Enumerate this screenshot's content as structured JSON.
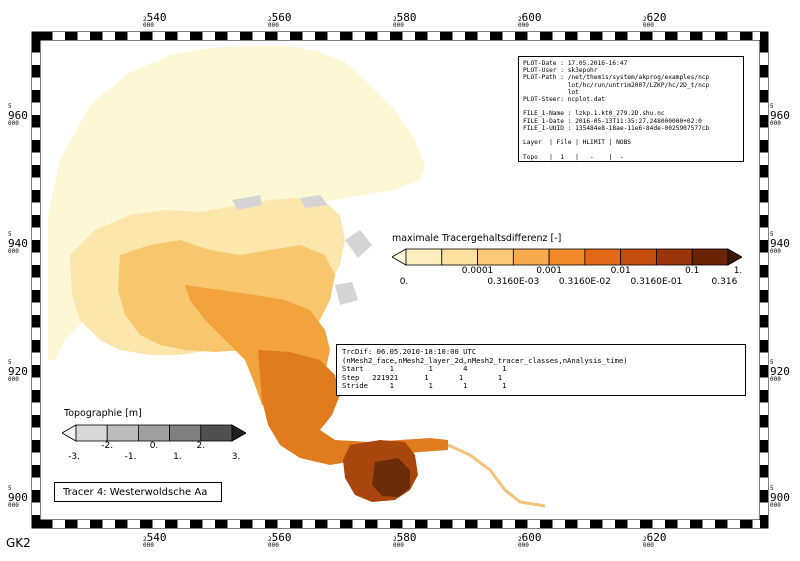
{
  "grid": {
    "x_top": [
      {
        "major": "2",
        "label": "540",
        "minor": "000"
      },
      {
        "major": "2",
        "label": "560",
        "minor": "000"
      },
      {
        "major": "2",
        "label": "580",
        "minor": "000"
      },
      {
        "major": "2",
        "label": "600",
        "minor": "000"
      },
      {
        "major": "2",
        "label": "620",
        "minor": "000"
      }
    ],
    "y_side": [
      {
        "major": "5",
        "label": "960",
        "minor": "000"
      },
      {
        "major": "5",
        "label": "940",
        "minor": "000"
      },
      {
        "major": "5",
        "label": "920",
        "minor": "000"
      },
      {
        "major": "5",
        "label": "900",
        "minor": "000"
      }
    ],
    "crs": "GK2"
  },
  "info_box": {
    "lines": [
      "PLOT-Date : 17.05.2016-16:47",
      "PLOT-User : sk3epohr",
      "PLOT-Path : /net/themis/system/akprog/examples/ncp",
      "            lot/hc/run/untrim2007/LZKP/hc/2D_t/ncp",
      "            lot",
      "PLOT-Steer: ncplot.dat",
      "",
      "FILE_1-Name : lzkp.1.kt0_279.2D.shu.nc",
      "FILE_1-Date : 2016-05-13T11:35:27.248000000+02:0",
      "FILE_1-UUID : 135484e8-18ae-11e6-84de-0025907577cb",
      "",
      "Layer  | File | HLIMIT | NOBS",
      "",
      "Topo   |  1   |   -    |  -",
      "TrcDif |  1   |   -    |  -"
    ]
  },
  "tracer_legend": {
    "title": "maximale Tracergehaltsdifferenz [-]",
    "upper_ticks": [
      "0.0001",
      "0.001",
      "0.01",
      "0.1",
      "1."
    ],
    "lower_ticks": [
      "0.",
      "0.3160E-03",
      "0.3160E-02",
      "0.3160E-01",
      "0.316"
    ],
    "colors": [
      "#fffbe0",
      "#fdeec0",
      "#fbe0a0",
      "#f9c878",
      "#f6ac4e",
      "#f08a2a",
      "#e2691a",
      "#c34d0d",
      "#9a360a",
      "#6b2306",
      "#3d1703"
    ]
  },
  "dataset_box": {
    "lines": [
      "TrcDif: 06.05.2010-18:10:00 UTC",
      "(nMesh2_face,nMesh2_layer_2d,nMesh2_tracer_classes,nAnalysis_time)",
      "Start      1        1       4        1",
      "Step   221921      1       1        1",
      "Stride     1        1       1        1"
    ]
  },
  "topo_legend": {
    "title": "Topographie [m]",
    "upper_ticks": [
      "-2.",
      "0.",
      "2."
    ],
    "lower_ticks": [
      "-3.",
      "-1.",
      "1.",
      "3."
    ],
    "colors": [
      "#f4f4f4",
      "#d8d8d8",
      "#bcbcbc",
      "#a0a0a0",
      "#808080",
      "#505050",
      "#202020"
    ]
  },
  "tracer_label": "Tracer 4: Westerwoldsche Aa"
}
